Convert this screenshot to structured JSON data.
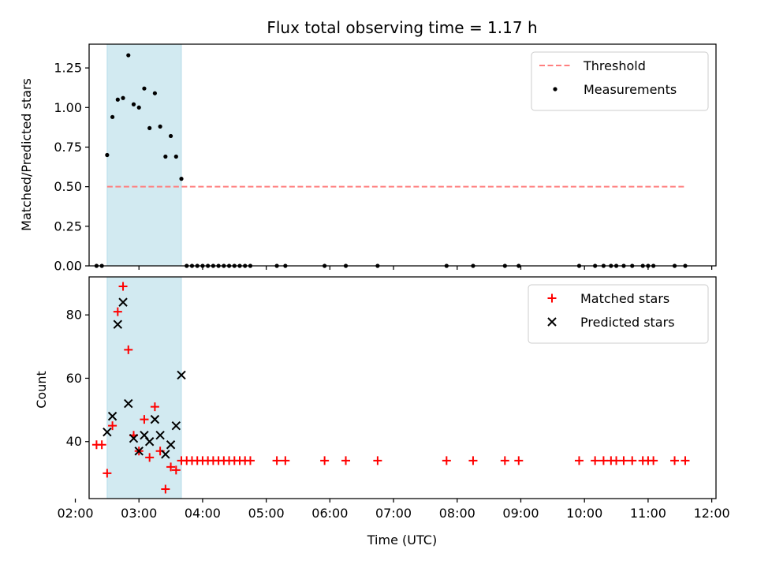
{
  "chart_data": [
    {
      "type": "scatter",
      "title": "Flux total observing time = 1.17 h",
      "xlabel": "",
      "ylabel": "Matched/Predicted stars",
      "xlim": [
        "02:13",
        "12:04"
      ],
      "ylim": [
        0,
        1.4
      ],
      "yticks": [
        0,
        0.25,
        0.5,
        0.75,
        1.0,
        1.25
      ],
      "ytick_labels": [
        "0.00",
        "0.25",
        "0.50",
        "0.75",
        "1.00",
        "1.25"
      ],
      "shaded_span": [
        "02:30",
        "03:40"
      ],
      "shaded_color": "#add8e6",
      "legend": {
        "position": "top-right",
        "entries": [
          "Threshold",
          "Measurements"
        ]
      },
      "series": [
        {
          "name": "Threshold",
          "style": "dashed-line",
          "color": "#ff7f7f",
          "x": [
            "02:30",
            "11:35"
          ],
          "y": [
            0.5,
            0.5
          ]
        },
        {
          "name": "Measurements",
          "style": "dot",
          "color": "#000000",
          "x": [
            "02:20",
            "02:25",
            "02:30",
            "02:35",
            "02:40",
            "02:45",
            "02:50",
            "02:55",
            "03:00",
            "03:05",
            "03:10",
            "03:15",
            "03:20",
            "03:25",
            "03:30",
            "03:35",
            "03:40",
            "03:45",
            "03:50",
            "03:55",
            "04:00",
            "04:05",
            "04:10",
            "04:15",
            "04:20",
            "04:25",
            "04:30",
            "04:35",
            "04:40",
            "04:45",
            "05:10",
            "05:18",
            "05:55",
            "06:15",
            "06:45",
            "07:50",
            "08:15",
            "08:45",
            "08:58",
            "09:55",
            "10:10",
            "10:18",
            "10:25",
            "10:30",
            "10:37",
            "10:45",
            "10:55",
            "11:00",
            "11:05",
            "11:25",
            "11:35"
          ],
          "y": [
            0,
            0,
            0.7,
            0.94,
            1.05,
            1.06,
            1.33,
            1.02,
            1.0,
            1.12,
            0.87,
            1.09,
            0.88,
            0.69,
            0.82,
            0.69,
            0.55,
            0,
            0,
            0,
            0,
            0,
            0,
            0,
            0,
            0,
            0,
            0,
            0,
            0,
            0,
            0,
            0,
            0,
            0,
            0,
            0,
            0,
            0,
            0,
            0,
            0,
            0,
            0,
            0,
            0,
            0,
            0,
            0,
            0,
            0
          ]
        }
      ]
    },
    {
      "type": "scatter",
      "title": "",
      "xlabel": "Time (UTC)",
      "ylabel": "Count",
      "xlim": [
        "02:13",
        "12:04"
      ],
      "ylim": [
        22,
        92
      ],
      "yticks": [
        40,
        60,
        80
      ],
      "ytick_labels": [
        "40",
        "60",
        "80"
      ],
      "xticks": [
        "02:00",
        "03:00",
        "04:00",
        "05:00",
        "06:00",
        "07:00",
        "08:00",
        "09:00",
        "10:00",
        "11:00",
        "12:00"
      ],
      "xtick_labels": [
        "02:00",
        "03:00",
        "04:00",
        "05:00",
        "06:00",
        "07:00",
        "08:00",
        "09:00",
        "10:00",
        "11:00",
        "12:00"
      ],
      "shaded_span": [
        "02:30",
        "03:40"
      ],
      "shaded_color": "#add8e6",
      "legend": {
        "position": "top-right",
        "entries": [
          "Matched stars",
          "Predicted stars"
        ]
      },
      "series": [
        {
          "name": "Matched stars",
          "style": "plus",
          "color": "#ff0000",
          "x": [
            "02:20",
            "02:25",
            "02:30",
            "02:35",
            "02:40",
            "02:45",
            "02:50",
            "02:55",
            "03:00",
            "03:05",
            "03:10",
            "03:15",
            "03:20",
            "03:25",
            "03:30",
            "03:35",
            "03:40",
            "03:45",
            "03:50",
            "03:55",
            "04:00",
            "04:05",
            "04:10",
            "04:15",
            "04:20",
            "04:25",
            "04:30",
            "04:35",
            "04:40",
            "04:45",
            "05:10",
            "05:18",
            "05:55",
            "06:15",
            "06:45",
            "07:50",
            "08:15",
            "08:45",
            "08:58",
            "09:55",
            "10:10",
            "10:18",
            "10:25",
            "10:30",
            "10:37",
            "10:45",
            "10:55",
            "11:00",
            "11:05",
            "11:25",
            "11:35"
          ],
          "y": [
            39,
            39,
            30,
            45,
            81,
            89,
            69,
            42,
            37,
            47,
            35,
            51,
            37,
            25,
            32,
            31,
            34,
            34,
            34,
            34,
            34,
            34,
            34,
            34,
            34,
            34,
            34,
            34,
            34,
            34,
            34,
            34,
            34,
            34,
            34,
            34,
            34,
            34,
            34,
            34,
            34,
            34,
            34,
            34,
            34,
            34,
            34,
            34,
            34,
            34,
            34
          ]
        },
        {
          "name": "Predicted stars",
          "style": "cross",
          "color": "#000000",
          "x": [
            "02:30",
            "02:35",
            "02:40",
            "02:45",
            "02:50",
            "02:55",
            "03:00",
            "03:05",
            "03:10",
            "03:15",
            "03:20",
            "03:25",
            "03:30",
            "03:35",
            "03:40"
          ],
          "y": [
            43,
            48,
            77,
            84,
            52,
            41,
            37,
            42,
            40,
            47,
            42,
            36,
            39,
            45,
            61
          ]
        }
      ]
    }
  ]
}
